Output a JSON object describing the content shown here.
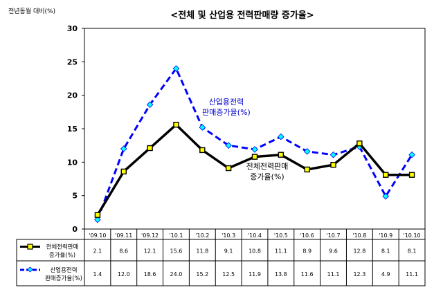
{
  "chart_data": {
    "type": "line",
    "title": "<전체 및 산업용 전력판매량 증가율>",
    "ylabel": "전년동월 대비(%)",
    "xlabel": "",
    "ylim": [
      0,
      30
    ],
    "yticks": [
      0,
      5,
      10,
      15,
      20,
      25,
      30
    ],
    "grid": false,
    "categories": [
      "'09.10",
      "'09.11",
      "'09.12",
      "'10.1",
      "'10.2",
      "'10.3",
      "'10.4",
      "'10.5",
      "'10.6",
      "'10.7",
      "'10.8",
      "'10.9",
      "'10.10"
    ],
    "series": [
      {
        "name": "전체전력판매 증가율(%)",
        "annotation": "전체전력판매 증가율(%)",
        "values": [
          2.1,
          8.6,
          12.1,
          15.6,
          11.8,
          9.1,
          10.8,
          11.1,
          8.9,
          9.6,
          12.8,
          8.1,
          8.1
        ],
        "display": [
          "2.1",
          "8.6",
          "12.1",
          "15.6",
          "11.8",
          "9.1",
          "10.8",
          "11.1",
          "8.9",
          "9.6",
          "12.8",
          "8.1",
          "8.1"
        ],
        "line_color": "#000000",
        "marker_color": "#ffff00",
        "style": "solid"
      },
      {
        "name": "산업용전력 판매증가율(%)",
        "annotation": "산업용전력 판매증가율(%)",
        "values": [
          1.4,
          12.0,
          18.6,
          24.0,
          15.2,
          12.5,
          11.9,
          13.8,
          11.6,
          11.1,
          12.3,
          4.9,
          11.1
        ],
        "display": [
          "1.4",
          "12.0",
          "18.6",
          "24.0",
          "15.2",
          "12.5",
          "11.9",
          "13.8",
          "11.6",
          "11.1",
          "12.3",
          "4.9",
          "11.1"
        ],
        "line_color": "#0000ff",
        "marker_color": "#00ffff",
        "style": "dashed"
      }
    ]
  }
}
